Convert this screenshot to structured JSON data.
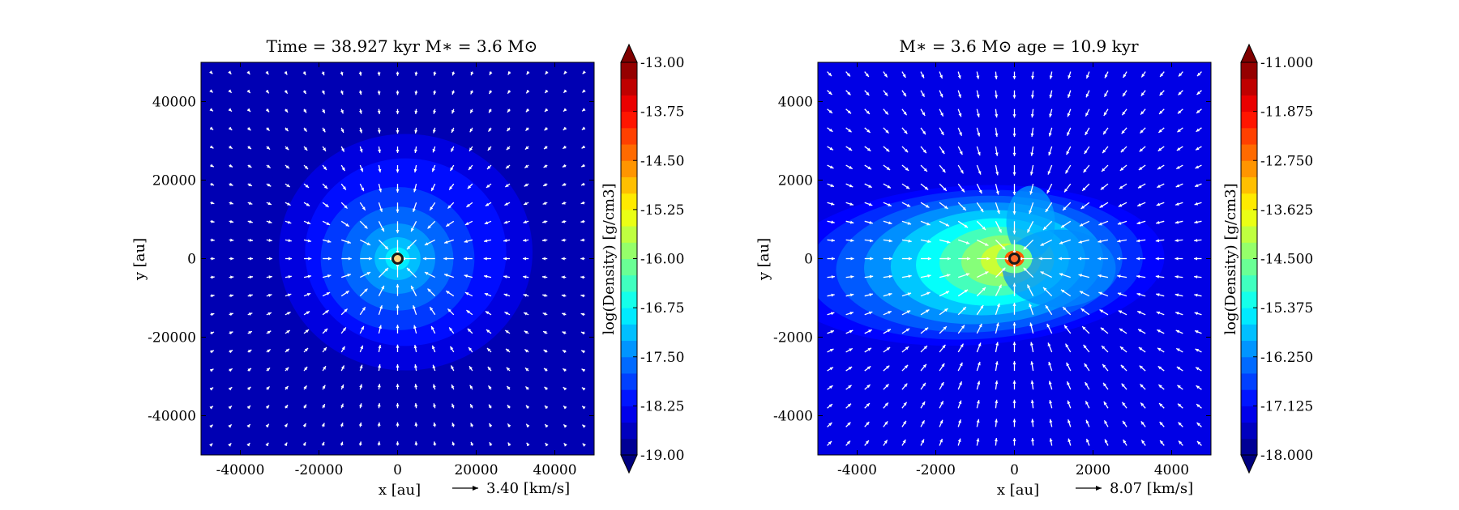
{
  "chart_data": [
    {
      "type": "heatmap",
      "title": "Time = 38.927 kyr    M∗ = 3.6 M⊙",
      "xlabel": "x [au]",
      "ylabel": "y [au]",
      "xlim": [
        -50000,
        50000
      ],
      "ylim": [
        -50000,
        50000
      ],
      "xticks": [
        -40000,
        -20000,
        0,
        20000,
        40000
      ],
      "yticks": [
        -40000,
        -20000,
        0,
        20000,
        40000
      ],
      "xtick_labels": [
        "-40000",
        "-20000",
        "0",
        "20000",
        "40000"
      ],
      "ytick_labels": [
        "-40000",
        "-20000",
        "0",
        "20000",
        "40000"
      ],
      "colorbar": {
        "label": "log(Density) [g/cm3]",
        "range": [
          -19.0,
          -13.0
        ],
        "ticks": [
          -19.0,
          -18.25,
          -17.5,
          -16.75,
          -16.0,
          -15.25,
          -14.5,
          -13.75,
          -13.0
        ],
        "tick_labels": [
          "-19.00",
          "-18.25",
          "-17.50",
          "-16.75",
          "-16.00",
          "-15.25",
          "-14.50",
          "-13.75",
          "-13.00"
        ]
      },
      "vector_key": {
        "label": "3.40 [km/s]",
        "value": 3.4
      },
      "star": {
        "x": 0,
        "y": 0
      },
      "field": {
        "background": -18.7,
        "peak": -16.6,
        "core_scale": 15000
      },
      "grid": false
    },
    {
      "type": "heatmap",
      "title": "M∗ = 3.6 M⊙         age = 10.9 kyr",
      "xlabel": "x [au]",
      "ylabel": "y [au]",
      "xlim": [
        -5000,
        5000
      ],
      "ylim": [
        -5000,
        5000
      ],
      "xticks": [
        -4000,
        -2000,
        0,
        2000,
        4000
      ],
      "yticks": [
        -4000,
        -2000,
        0,
        2000,
        4000
      ],
      "xtick_labels": [
        "-4000",
        "-2000",
        "0",
        "2000",
        "4000"
      ],
      "ytick_labels": [
        "-4000",
        "-2000",
        "0",
        "2000",
        "4000"
      ],
      "colorbar": {
        "label": "log(Density) [g/cm3]",
        "range": [
          -18.0,
          -11.0
        ],
        "ticks": [
          -18.0,
          -17.125,
          -16.25,
          -15.375,
          -14.5,
          -13.625,
          -12.75,
          -11.875,
          -11.0
        ],
        "tick_labels": [
          "-18.000",
          "-17.125",
          "-16.250",
          "-15.375",
          "-14.500",
          "-13.625",
          "-12.750",
          "-11.875",
          "-11.000"
        ]
      },
      "vector_key": {
        "label": "8.07 [km/s]",
        "value": 8.07
      },
      "star": {
        "x": 0,
        "y": 0
      },
      "field": {
        "background": -17.3,
        "peak": -13.0,
        "core_scale": 2500
      },
      "grid": false
    }
  ]
}
